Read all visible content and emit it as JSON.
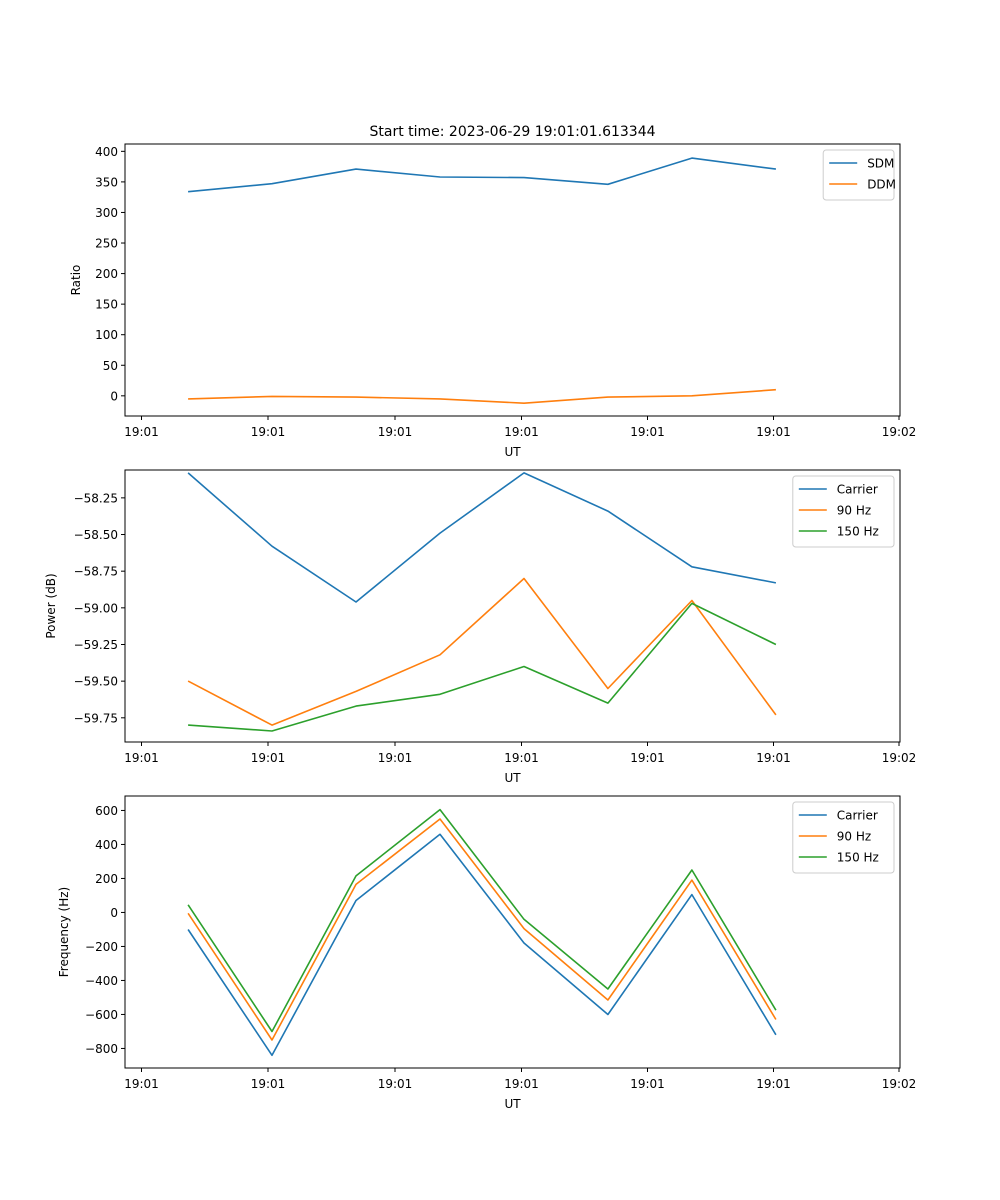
{
  "figure_title": "Start time: 2023-06-29 19:01:01.613344",
  "colors": {
    "blue": "#1f77b4",
    "orange": "#ff7f0e",
    "green": "#2ca02c"
  },
  "chart_data": [
    {
      "type": "line",
      "title": "Start time: 2023-06-29 19:01:01.613344",
      "xlabel": "UT",
      "ylabel": "Ratio",
      "x_tick_labels": [
        "19:01",
        "19:01",
        "19:01",
        "19:01",
        "19:01",
        "19:01",
        "19:02"
      ],
      "x_sample_index": [
        1,
        2,
        3,
        4,
        5,
        6,
        7,
        8
      ],
      "xlim": [
        0.2489,
        9.4783
      ],
      "ylim": [
        -33,
        412
      ],
      "y_ticks": [
        0,
        50,
        100,
        150,
        200,
        250,
        300,
        350,
        400
      ],
      "y_tick_labels": [
        "0",
        "50",
        "100",
        "150",
        "200",
        "250",
        "300",
        "350",
        "400"
      ],
      "legend": "top-right",
      "grid": false,
      "series": [
        {
          "name": "SDM",
          "color": "#1f77b4",
          "values": [
            334,
            347,
            371,
            358,
            357,
            346,
            389,
            371
          ]
        },
        {
          "name": "DDM",
          "color": "#ff7f0e",
          "values": [
            -5,
            -1,
            -2,
            -5,
            -12,
            -2,
            0,
            10
          ]
        }
      ]
    },
    {
      "type": "line",
      "title": "",
      "xlabel": "UT",
      "ylabel": "Power (dB)",
      "x_tick_labels": [
        "19:01",
        "19:01",
        "19:01",
        "19:01",
        "19:01",
        "19:01",
        "19:02"
      ],
      "x_sample_index": [
        1,
        2,
        3,
        4,
        5,
        6,
        7,
        8
      ],
      "xlim": [
        0.2489,
        9.4783
      ],
      "ylim": [
        -59.915,
        -58.06
      ],
      "y_ticks": [
        -59.75,
        -59.5,
        -59.25,
        -59.0,
        -58.75,
        -58.5,
        -58.25
      ],
      "y_tick_labels": [
        "−59.75",
        "−59.50",
        "−59.25",
        "−59.00",
        "−58.75",
        "−58.50",
        "−58.25"
      ],
      "legend": "top-right",
      "grid": false,
      "series": [
        {
          "name": "Carrier",
          "color": "#1f77b4",
          "values": [
            -58.08,
            -58.58,
            -58.96,
            -58.49,
            -58.08,
            -58.34,
            -58.72,
            -58.83
          ]
        },
        {
          "name": "90 Hz",
          "color": "#ff7f0e",
          "values": [
            -59.5,
            -59.8,
            -59.57,
            -59.32,
            -58.8,
            -59.55,
            -58.95,
            -59.73
          ]
        },
        {
          "name": "150 Hz",
          "color": "#2ca02c",
          "values": [
            -59.8,
            -59.84,
            -59.67,
            -59.59,
            -59.4,
            -59.65,
            -58.97,
            -59.25
          ]
        }
      ]
    },
    {
      "type": "line",
      "title": "",
      "xlabel": "UT",
      "ylabel": "Frequency (Hz)",
      "x_tick_labels": [
        "19:01",
        "19:01",
        "19:01",
        "19:01",
        "19:01",
        "19:01",
        "19:02"
      ],
      "x_sample_index": [
        1,
        2,
        3,
        4,
        5,
        6,
        7,
        8
      ],
      "xlim": [
        0.2489,
        9.4783
      ],
      "ylim": [
        -915,
        685
      ],
      "y_ticks": [
        -800,
        -600,
        -400,
        -200,
        0,
        200,
        400,
        600
      ],
      "y_tick_labels": [
        "−800",
        "−600",
        "−400",
        "−200",
        "0",
        "200",
        "400",
        "600"
      ],
      "legend": "top-right",
      "grid": false,
      "series": [
        {
          "name": "Carrier",
          "color": "#1f77b4",
          "values": [
            -100,
            -840,
            70,
            460,
            -180,
            -600,
            105,
            -720
          ]
        },
        {
          "name": "90 Hz",
          "color": "#ff7f0e",
          "values": [
            -5,
            -750,
            165,
            550,
            -95,
            -515,
            190,
            -630
          ]
        },
        {
          "name": "150 Hz",
          "color": "#2ca02c",
          "values": [
            45,
            -700,
            215,
            605,
            -40,
            -450,
            250,
            -575
          ]
        }
      ]
    }
  ]
}
